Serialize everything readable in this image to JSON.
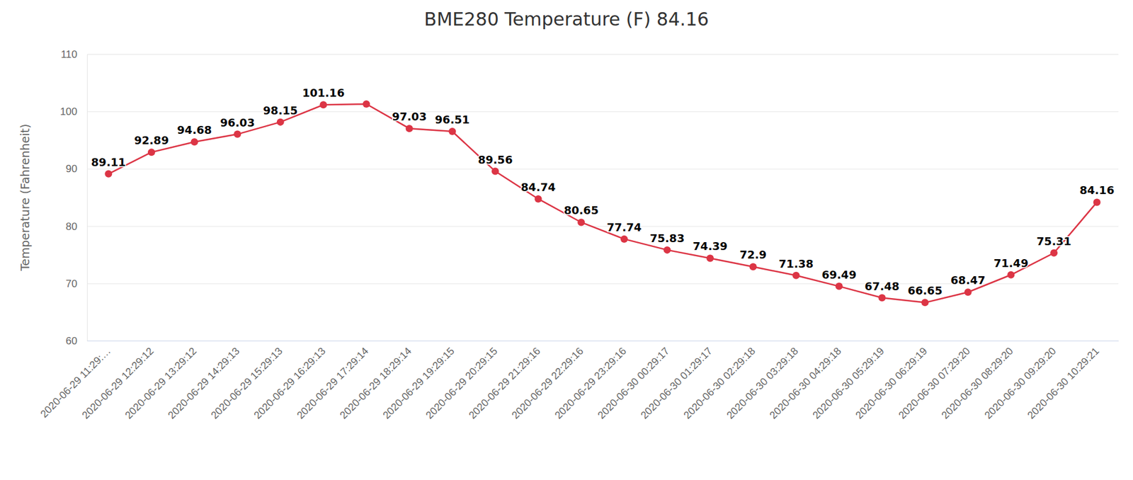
{
  "chart_data": {
    "type": "line",
    "title": "BME280 Temperature (F) 84.16",
    "y_label": "Temperature (Fahrenheit)",
    "categories": [
      "2020-06-29 11:29:…",
      "2020-06-29 12:29:12",
      "2020-06-29 13:29:12",
      "2020-06-29 14:29:13",
      "2020-06-29 15:29:13",
      "2020-06-29 16:29:13",
      "2020-06-29 17:29:14",
      "2020-06-29 18:29:14",
      "2020-06-29 19:29:15",
      "2020-06-29 20:29:15",
      "2020-06-29 21:29:16",
      "2020-06-29 22:29:16",
      "2020-06-29 23:29:16",
      "2020-06-30 00:29:17",
      "2020-06-30 01:29:17",
      "2020-06-30 02:29:18",
      "2020-06-30 03:29:18",
      "2020-06-30 04:29:18",
      "2020-06-30 05:29:19",
      "2020-06-30 06:29:19",
      "2020-06-30 07:29:20",
      "2020-06-30 08:29:20",
      "2020-06-30 09:29:20",
      "2020-06-30 10:29:21"
    ],
    "series": [
      {
        "name": "Temperature",
        "color": "#dc3545",
        "marker": "circle",
        "line_style": "solid",
        "values": [
          89.11,
          92.89,
          94.68,
          96.03,
          98.15,
          101.16,
          101.3,
          97.03,
          96.51,
          89.56,
          84.74,
          80.65,
          77.74,
          75.83,
          74.39,
          72.9,
          71.38,
          69.49,
          67.48,
          66.65,
          68.47,
          71.49,
          75.31,
          84.16
        ],
        "value_labels": [
          "89.11",
          "92.89",
          "94.68",
          "96.03",
          "98.15",
          "101.16",
          null,
          "97.03",
          "96.51",
          "89.56",
          "84.74",
          "80.65",
          "77.74",
          "75.83",
          "74.39",
          "72.9",
          "71.38",
          "69.49",
          "67.48",
          "66.65",
          "68.47",
          "71.49",
          "75.31",
          "84.16"
        ]
      }
    ],
    "ylim": [
      60,
      110
    ],
    "yticks": [
      60,
      70,
      80,
      90,
      100,
      110
    ],
    "grid": true,
    "data_labels": true
  }
}
